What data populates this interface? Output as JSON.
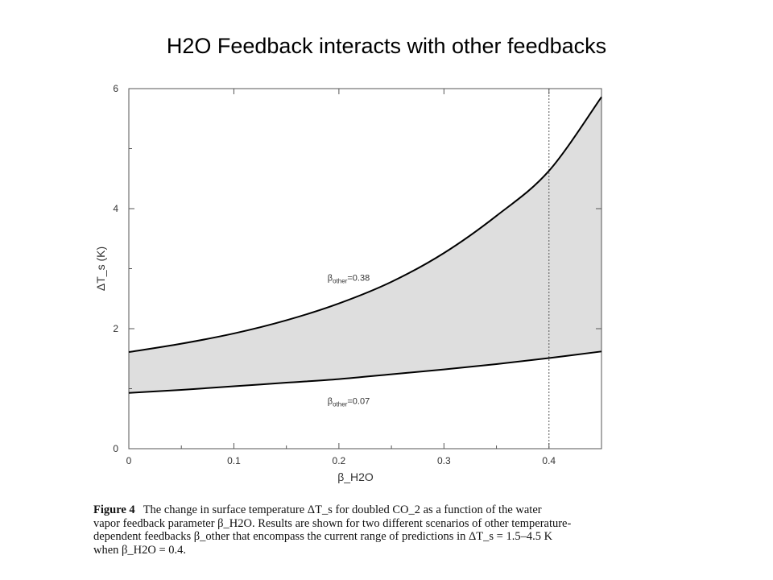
{
  "slide": {
    "title": "H2O Feedback interacts with other feedbacks"
  },
  "chart_data": {
    "type": "area",
    "title": "",
    "xlabel": "β_H2O",
    "ylabel": "ΔT_s (K)",
    "xlim": [
      0,
      0.45
    ],
    "ylim": [
      0,
      6
    ],
    "x_ticks": [
      "0",
      "0.1",
      "0.2",
      "0.3",
      "0.4"
    ],
    "y_ticks": [
      "0",
      "2",
      "4",
      "6"
    ],
    "reference_line": {
      "x": 0.4,
      "style": "dotted"
    },
    "shaded_band": "between the two curves",
    "grid": false,
    "series": [
      {
        "name": "β_other=0.38",
        "x": [
          0,
          0.05,
          0.1,
          0.15,
          0.2,
          0.25,
          0.3,
          0.35,
          0.4,
          0.45
        ],
        "values": [
          1.61,
          1.75,
          1.92,
          2.14,
          2.42,
          2.78,
          3.26,
          3.88,
          4.63,
          5.86
        ]
      },
      {
        "name": "β_other=0.07",
        "x": [
          0,
          0.05,
          0.1,
          0.15,
          0.2,
          0.25,
          0.3,
          0.35,
          0.4,
          0.45
        ],
        "values": [
          0.93,
          0.98,
          1.04,
          1.1,
          1.16,
          1.24,
          1.32,
          1.41,
          1.51,
          1.62
        ]
      }
    ],
    "annotations": [
      {
        "text_main": "β",
        "text_sub": "other",
        "text_rest": "=0.38",
        "at": [
          0.18,
          2.85
        ]
      },
      {
        "text_main": "β",
        "text_sub": "other",
        "text_rest": "=0.07",
        "at": [
          0.18,
          0.8
        ]
      }
    ]
  },
  "caption": {
    "label": "Figure 4",
    "lines": [
      "The change in surface temperature ΔT_s for doubled CO_2 as a function of the water",
      "vapor feedback parameter β_H2O. Results are shown for two different scenarios of other temperature-",
      "dependent feedbacks β_other that encompass the current range of predictions in ΔT_s = 1.5–4.5 K",
      "when β_H2O = 0.4."
    ]
  }
}
